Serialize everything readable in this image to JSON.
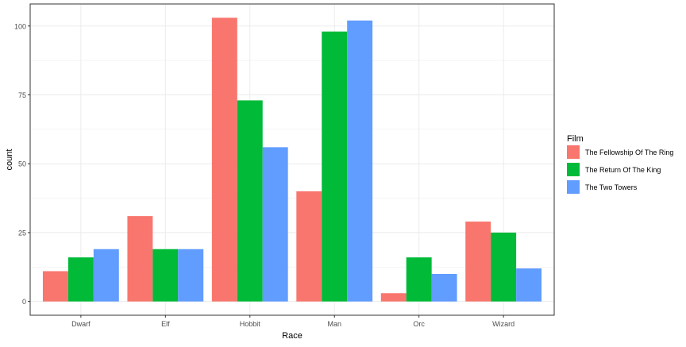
{
  "chart_data": {
    "type": "bar",
    "xlabel": "Race",
    "ylabel": "count",
    "categories": [
      "Dwarf",
      "Elf",
      "Hobbit",
      "Man",
      "Orc",
      "Wizard"
    ],
    "ylim": [
      -5,
      108
    ],
    "yticks": [
      0,
      25,
      50,
      75,
      100
    ],
    "grid": true,
    "legend": {
      "title": "Film",
      "position": "right"
    },
    "series": [
      {
        "name": "The Fellowship Of The Ring",
        "color": "#F8766D",
        "values": [
          11,
          31,
          103,
          40,
          3,
          29
        ]
      },
      {
        "name": "The Return Of The King",
        "color": "#00BA38",
        "values": [
          16,
          19,
          73,
          98,
          16,
          25
        ]
      },
      {
        "name": "The Two Towers",
        "color": "#619CFF",
        "values": [
          19,
          19,
          56,
          102,
          10,
          12
        ]
      }
    ]
  }
}
